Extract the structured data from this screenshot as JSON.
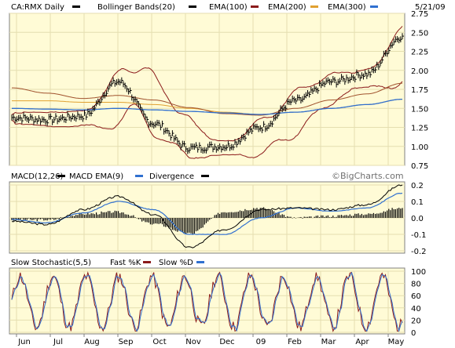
{
  "price_panel": {
    "symbol": "CA:RMX Daily",
    "legend": [
      {
        "label": "Bollinger Bands(20)",
        "color": "#8b1a1a"
      },
      {
        "label": "EMA(100)",
        "color": "#a0522d"
      },
      {
        "label": "EMA(200)",
        "color": "#e0a030"
      },
      {
        "label": "EMA(300)",
        "color": "#3070d0"
      }
    ],
    "date_label": "5/21/09",
    "y_ticks": [
      "2.75",
      "2.50",
      "2.25",
      "2.00",
      "1.75",
      "1.50",
      "1.25",
      "1.00",
      "0.75"
    ],
    "ylim": [
      0.75,
      2.75
    ]
  },
  "macd_panel": {
    "title": "MACD(12,26)",
    "legend": [
      {
        "label": "MACD EMA(9)",
        "color": "#3070d0"
      },
      {
        "label": "Divergence",
        "color": "#8b1a1a"
      }
    ],
    "watermark": "©BigCharts.com",
    "y_ticks": [
      "0.2",
      "0.1",
      "0.0",
      "-0.1",
      "-0.2"
    ],
    "ylim": [
      -0.2,
      0.2
    ]
  },
  "stoch_panel": {
    "title": "Slow Stochastic(5,5)",
    "legend": [
      {
        "label": "Fast %K",
        "color": "#8b1a1a"
      },
      {
        "label": "Slow %D",
        "color": "#3070d0"
      }
    ],
    "y_ticks": [
      "100",
      "80",
      "60",
      "40",
      "20",
      "0"
    ],
    "ylim": [
      0,
      100
    ]
  },
  "x_axis": {
    "labels": [
      "Jun",
      "Jul",
      "Aug",
      "Sep",
      "Oct",
      "Nov",
      "Dec",
      "09",
      "Feb",
      "Mar",
      "Apr",
      "May"
    ]
  },
  "colors": {
    "background": "#fffbd6",
    "grid": "#e4deb0",
    "price": "#000000",
    "bollinger": "#8b1a1a",
    "ema100": "#a0522d",
    "ema200": "#e0a030",
    "ema300": "#3070d0",
    "macd": "#000000",
    "signal": "#3070d0",
    "divergence": "#000000",
    "fast_k": "#8b1a1a",
    "slow_d": "#3070d0"
  },
  "chart_data": {
    "type": "line",
    "x": [
      "Jun",
      "Jul",
      "Aug",
      "Sep",
      "Oct",
      "Nov",
      "Dec",
      "09",
      "Feb",
      "Mar",
      "Apr",
      "May"
    ],
    "series": [
      {
        "name": "CA:RMX Daily",
        "values": [
          1.38,
          1.35,
          1.4,
          1.85,
          1.3,
          0.98,
          1.0,
          1.25,
          1.6,
          1.85,
          1.95,
          2.45
        ]
      },
      {
        "name": "EMA(100)",
        "values": [
          1.72,
          1.65,
          1.58,
          1.62,
          1.56,
          1.46,
          1.38,
          1.36,
          1.45,
          1.56,
          1.64,
          1.78
        ]
      },
      {
        "name": "EMA(200)",
        "values": [
          1.6,
          1.6,
          1.58,
          1.58,
          1.55,
          1.5,
          1.45,
          1.42,
          1.45,
          1.5,
          1.55,
          1.62
        ]
      },
      {
        "name": "EMA(300)",
        "values": [
          1.5,
          1.49,
          1.48,
          1.5,
          1.48,
          1.46,
          1.44,
          1.42,
          1.45,
          1.5,
          1.55,
          1.62
        ]
      },
      {
        "name": "MACD(12,26)",
        "values": [
          -0.02,
          -0.04,
          0.05,
          0.13,
          0.02,
          -0.18,
          -0.07,
          0.05,
          0.06,
          0.05,
          0.08,
          0.2
        ]
      },
      {
        "name": "MACD EMA(9)",
        "values": [
          -0.01,
          -0.03,
          0.03,
          0.1,
          0.05,
          -0.1,
          -0.1,
          0.0,
          0.06,
          0.04,
          0.06,
          0.15
        ]
      },
      {
        "name": "Fast %K",
        "values": [
          30,
          80,
          15,
          90,
          20,
          60,
          10,
          85,
          30,
          90,
          20,
          95
        ]
      },
      {
        "name": "Slow %D",
        "values": [
          35,
          70,
          20,
          85,
          25,
          55,
          15,
          80,
          35,
          85,
          25,
          90
        ]
      }
    ],
    "ylim": [
      0.75,
      2.75
    ],
    "grid": true
  }
}
